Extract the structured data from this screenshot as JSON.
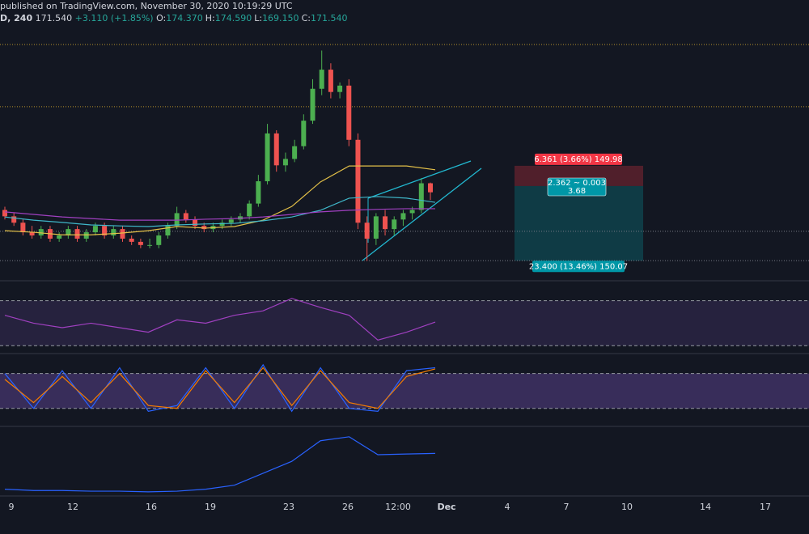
{
  "header": {
    "published": "published on TradingView.com, November 30, 2020 10:19:29 UTC",
    "symbol": "D, 240",
    "price": "171.540",
    "change": "+3.110 (+1.85%)",
    "ohlc": [
      {
        "label": "O:",
        "value": "174.370"
      },
      {
        "label": "H:",
        "value": "174.590"
      },
      {
        "label": "L:",
        "value": "169.150"
      },
      {
        "label": "C:",
        "value": "171.540"
      }
    ]
  },
  "chart_data": {
    "type": "candlestick",
    "ylim": [
      144.3,
      221.7
    ],
    "open": [
      166,
      164,
      162,
      159,
      158,
      160,
      157,
      158,
      160,
      157,
      159,
      161,
      158,
      160,
      157,
      156,
      155,
      155,
      158,
      161,
      165,
      163,
      161,
      160,
      161,
      162,
      163,
      164,
      168,
      175,
      190,
      180,
      182,
      186,
      194,
      204,
      210,
      203,
      205,
      188,
      162,
      157,
      164,
      160,
      163,
      165,
      166,
      174.37
    ],
    "high": [
      167,
      165,
      163,
      161,
      161,
      161,
      159,
      161,
      161,
      160,
      162,
      162,
      161,
      161,
      158,
      157,
      157,
      159,
      162,
      167,
      166,
      164,
      162,
      162,
      163,
      164,
      165,
      169,
      177,
      193,
      191,
      184,
      188,
      196,
      207,
      216,
      212,
      206,
      207,
      190,
      164,
      165,
      166,
      164,
      166,
      167,
      176,
      174.59
    ],
    "low": [
      163,
      161,
      158,
      157,
      157,
      156,
      156,
      157,
      156,
      156,
      158,
      157,
      157,
      156,
      155,
      154,
      154,
      154,
      157,
      160,
      162,
      160,
      159,
      159,
      160,
      161,
      162,
      163,
      167,
      174,
      178,
      178,
      181,
      185,
      193,
      202,
      201,
      201,
      186,
      160,
      150,
      155,
      158,
      158,
      161,
      163,
      165,
      169.15
    ],
    "close": [
      164,
      162,
      159,
      158,
      160,
      157,
      158,
      160,
      157,
      159,
      161,
      158,
      160,
      157,
      156,
      155,
      155,
      158,
      161,
      165,
      163,
      161,
      160,
      161,
      162,
      163,
      164,
      168,
      175,
      190,
      180,
      182,
      186,
      194,
      204,
      210,
      203,
      205,
      188,
      162,
      157,
      164,
      160,
      163,
      165,
      166,
      174.37,
      171.54
    ],
    "up_color": "#4caf50",
    "down_color": "#ef5350",
    "series": [
      {
        "color": "#e3c048",
        "values": [
          159.5,
          159,
          158.2,
          158.2,
          158.7,
          159.5,
          160.8,
          160.3,
          160.8,
          162.8,
          167.1,
          174.8,
          179.8,
          179.8,
          179.8,
          178.6
        ]
      },
      {
        "color": "#3fb7c9",
        "values": [
          163.8,
          162.8,
          162.1,
          161.3,
          161,
          160.8,
          161.3,
          161.6,
          161.8,
          162.6,
          163.8,
          165.9,
          169.7,
          170.2,
          169.7,
          168.4
        ]
      },
      {
        "color": "#a040c0",
        "values": [
          165.4,
          164.6,
          163.8,
          163.3,
          162.8,
          162.8,
          162.8,
          163.1,
          163.3,
          163.8,
          164.6,
          165.4,
          165.9,
          166.2,
          166.4,
          166.4
        ]
      }
    ],
    "levels": [
      {
        "value": 217.9,
        "color": "#b8932a"
      },
      {
        "value": 198.4,
        "color": "#b8932a"
      },
      {
        "value": 159.3,
        "color": "#787b86"
      },
      {
        "value": 150.1,
        "color": "#787b86"
      }
    ],
    "position": {
      "entry": 173.5,
      "stop": 179.85,
      "target": 150.07,
      "stop_label": "6.361 (3.66%) 149.98",
      "ratio_label": [
        "2.362 ~ 0.003",
        "3.68"
      ],
      "target_label": "23.400 (13.46%) 150.07"
    },
    "xticks": [
      "9",
      "12",
      "16",
      "19",
      "23",
      "26",
      "12:00",
      "Dec",
      "4",
      "7",
      "10",
      "14",
      "17"
    ]
  },
  "rsi": {
    "ylim": [
      23,
      87
    ],
    "bands": [
      30,
      70
    ],
    "color": "#a040c0",
    "values": [
      57,
      50,
      46,
      50,
      46,
      42,
      53,
      50,
      57,
      61,
      72,
      64,
      57,
      35,
      42,
      51
    ]
  },
  "stoch": {
    "ylim": [
      -11,
      113
    ],
    "bands": [
      20,
      80
    ],
    "series": [
      {
        "color": "#2962ff",
        "values": [
          80,
          20,
          85,
          20,
          90,
          15,
          25,
          90,
          20,
          95,
          15,
          90,
          20,
          15,
          85,
          90
        ]
      },
      {
        "color": "#f57c00",
        "values": [
          70,
          30,
          75,
          30,
          80,
          25,
          20,
          85,
          30,
          90,
          25,
          85,
          30,
          20,
          75,
          88
        ]
      }
    ]
  },
  "lower": {
    "ylim": [
      0,
      100
    ],
    "color": "#2962ff",
    "values": [
      9,
      7,
      7,
      6,
      6,
      5,
      6,
      9,
      15,
      33,
      51,
      82,
      88,
      61,
      62,
      63
    ]
  }
}
